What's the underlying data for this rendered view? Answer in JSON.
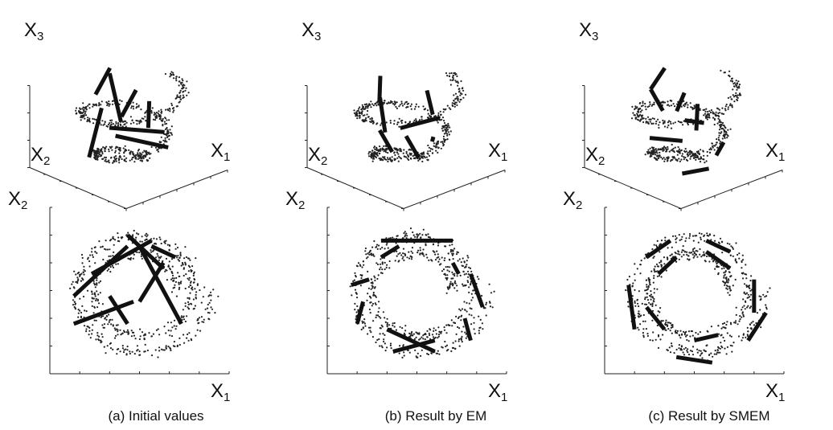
{
  "figure": {
    "panels": [
      {
        "id": "a",
        "caption": "(a) Initial values"
      },
      {
        "id": "b",
        "caption": "(b) Result by EM"
      },
      {
        "id": "c",
        "caption": "(c) Result by SMEM"
      }
    ],
    "axis_labels_3d": {
      "x1": "X",
      "x1_sub": "1",
      "x2": "X",
      "x2_sub": "2",
      "x3": "X",
      "x3_sub": "3"
    },
    "axis_labels_2d": {
      "x": "X",
      "x_sub": "1",
      "y": "X",
      "y_sub": "2"
    }
  },
  "chart_data": [
    {
      "type": "scatter",
      "panel": "a-top",
      "view": "3d",
      "title": "",
      "xlabel": "X1",
      "ylabel": "X2",
      "zlabel": "X3",
      "xlim": [
        -15,
        15
      ],
      "ylim": [
        -15,
        15
      ],
      "zlim": [
        0,
        15
      ],
      "series": [
        {
          "name": "",
          "description_points": "spiral data cloud"
        }
      ],
      "segments": [
        [
          [
            -6,
            4,
            14
          ],
          [
            4,
            10,
            15
          ]
        ],
        [
          [
            -8,
            0,
            13
          ],
          [
            -6,
            6,
            2
          ]
        ],
        [
          [
            -4,
            -2,
            11
          ],
          [
            6,
            4,
            12
          ]
        ],
        [
          [
            -2,
            2,
            6
          ],
          [
            6,
            -6,
            4
          ]
        ],
        [
          [
            2,
            -4,
            8
          ],
          [
            8,
            2,
            10
          ]
        ],
        [
          [
            -8,
            -6,
            12
          ],
          [
            2,
            8,
            15
          ]
        ],
        [
          [
            0,
            6,
            6
          ],
          [
            3,
            -8,
            8
          ]
        ]
      ]
    },
    {
      "type": "scatter",
      "panel": "b-top",
      "view": "3d",
      "xlabel": "X1",
      "ylabel": "X2",
      "zlabel": "X3",
      "xlim": [
        -15,
        15
      ],
      "ylim": [
        -15,
        15
      ],
      "zlim": [
        0,
        15
      ],
      "segments": [
        [
          [
            -6,
            2,
            13
          ],
          [
            0,
            8,
            15
          ]
        ],
        [
          [
            -10,
            -4,
            10
          ],
          [
            -2,
            6,
            12
          ]
        ],
        [
          [
            -6,
            -2,
            5
          ],
          [
            -4,
            4,
            7
          ]
        ],
        [
          [
            -2,
            -6,
            4
          ],
          [
            0,
            0,
            6
          ]
        ],
        [
          [
            4,
            6,
            5
          ],
          [
            10,
            0,
            7
          ]
        ],
        [
          [
            2,
            -6,
            6
          ],
          [
            10,
            2,
            3
          ]
        ],
        [
          [
            6,
            -2,
            9
          ],
          [
            10,
            4,
            11
          ]
        ]
      ]
    },
    {
      "type": "scatter",
      "panel": "c-top",
      "view": "3d",
      "xlabel": "X1",
      "ylabel": "X2",
      "zlabel": "X3",
      "xlim": [
        -15,
        15
      ],
      "ylim": [
        -15,
        15
      ],
      "zlim": [
        0,
        15
      ],
      "segments": [
        [
          [
            -4,
            6,
            14
          ],
          [
            4,
            10,
            15
          ]
        ],
        [
          [
            -8,
            -2,
            13
          ],
          [
            -4,
            6,
            14
          ]
        ],
        [
          [
            -2,
            0,
            11
          ],
          [
            6,
            6,
            11
          ]
        ],
        [
          [
            -6,
            -6,
            8
          ],
          [
            -10,
            0,
            8
          ]
        ],
        [
          [
            0,
            -4,
            8
          ],
          [
            8,
            4,
            9
          ]
        ],
        [
          [
            -8,
            -8,
            3
          ],
          [
            -2,
            -10,
            3
          ]
        ],
        [
          [
            4,
            -6,
            3
          ],
          [
            10,
            -2,
            3
          ]
        ],
        [
          [
            8,
            2,
            6
          ],
          [
            8,
            8,
            5
          ]
        ]
      ]
    },
    {
      "type": "scatter",
      "panel": "a-bottom",
      "view": "2d",
      "xlabel": "X1",
      "ylabel": "X2",
      "xlim": [
        -15,
        15
      ],
      "ylim": [
        -15,
        15
      ],
      "segments": [
        [
          [
            -11,
            -1
          ],
          [
            -2,
            8
          ]
        ],
        [
          [
            -2,
            10
          ],
          [
            4,
            4
          ]
        ],
        [
          [
            -11,
            -6
          ],
          [
            -1,
            -2
          ]
        ],
        [
          [
            -5,
            -1
          ],
          [
            -2,
            -6
          ]
        ],
        [
          [
            -8,
            3
          ],
          [
            2,
            9
          ]
        ],
        [
          [
            0,
            8
          ],
          [
            7,
            -6
          ]
        ],
        [
          [
            0,
            -2
          ],
          [
            4,
            5
          ]
        ],
        [
          [
            2,
            8
          ],
          [
            6,
            6
          ]
        ]
      ]
    },
    {
      "type": "scatter",
      "panel": "b-bottom",
      "view": "2d",
      "xlabel": "X1",
      "ylabel": "X2",
      "xlim": [
        -15,
        15
      ],
      "ylim": [
        -15,
        15
      ],
      "segments": [
        [
          [
            -6,
            9
          ],
          [
            6,
            9
          ]
        ],
        [
          [
            -6,
            6
          ],
          [
            -3,
            8
          ]
        ],
        [
          [
            -11,
            1
          ],
          [
            -8,
            2
          ]
        ],
        [
          [
            -10,
            -6
          ],
          [
            -9,
            -2
          ]
        ],
        [
          [
            -5,
            -7
          ],
          [
            3,
            -11
          ]
        ],
        [
          [
            -4,
            -11
          ],
          [
            3,
            -9
          ]
        ],
        [
          [
            6,
            5
          ],
          [
            7,
            3
          ]
        ],
        [
          [
            9,
            3
          ],
          [
            11,
            -3
          ]
        ],
        [
          [
            8,
            -5
          ],
          [
            9,
            -9
          ]
        ]
      ]
    },
    {
      "type": "scatter",
      "panel": "c-bottom",
      "view": "2d",
      "xlabel": "X1",
      "ylabel": "X2",
      "xlim": [
        -15,
        15
      ],
      "ylim": [
        -15,
        15
      ],
      "segments": [
        [
          [
            -8,
            6
          ],
          [
            -4,
            9
          ]
        ],
        [
          [
            -6,
            3
          ],
          [
            -3,
            6
          ]
        ],
        [
          [
            2,
            9
          ],
          [
            6,
            7
          ]
        ],
        [
          [
            2,
            7
          ],
          [
            6,
            4
          ]
        ],
        [
          [
            10,
            2
          ],
          [
            10,
            -4
          ]
        ],
        [
          [
            12,
            -4
          ],
          [
            9,
            -9
          ]
        ],
        [
          [
            -11,
            1
          ],
          [
            -10,
            -7
          ]
        ],
        [
          [
            -8,
            -3
          ],
          [
            -5,
            -7
          ]
        ],
        [
          [
            0,
            -9
          ],
          [
            4,
            -8
          ]
        ],
        [
          [
            -3,
            -12
          ],
          [
            3,
            -13
          ]
        ]
      ]
    }
  ]
}
